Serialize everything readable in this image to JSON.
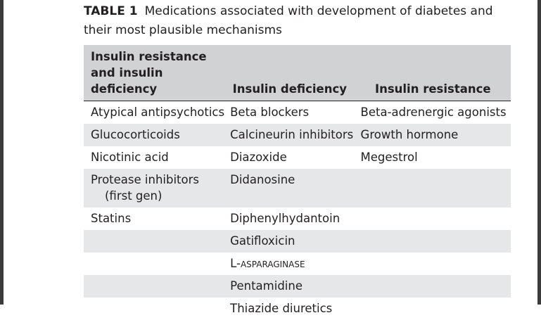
{
  "caption": {
    "label": "TABLE 1",
    "text": "Medications associated with development of diabetes and their most plausible mechanisms"
  },
  "table": {
    "headers": [
      "Insulin resistance and insulin deficiency",
      "Insulin deficiency",
      "Insulin resistance"
    ],
    "rows": [
      [
        "Atypical antipsychotics",
        "Beta blockers",
        "Beta-adrenergic agonists"
      ],
      [
        "Glucocorticoids",
        "Calcineurin inhibitors",
        "Growth hormone"
      ],
      [
        "Nicotinic acid",
        "Diazoxide",
        "Megestrol"
      ],
      [
        "Protease inhibitors",
        "Didanosine",
        ""
      ],
      [
        "Statins",
        "Diphenylhydantoin",
        ""
      ],
      [
        "",
        "Gatifloxicin",
        ""
      ],
      [
        "",
        "L-asparaginase",
        ""
      ],
      [
        "",
        "Pentamidine",
        ""
      ],
      [
        "",
        "Thiazide diuretics",
        ""
      ]
    ],
    "row4_col1_continuation": "(first gen)"
  }
}
